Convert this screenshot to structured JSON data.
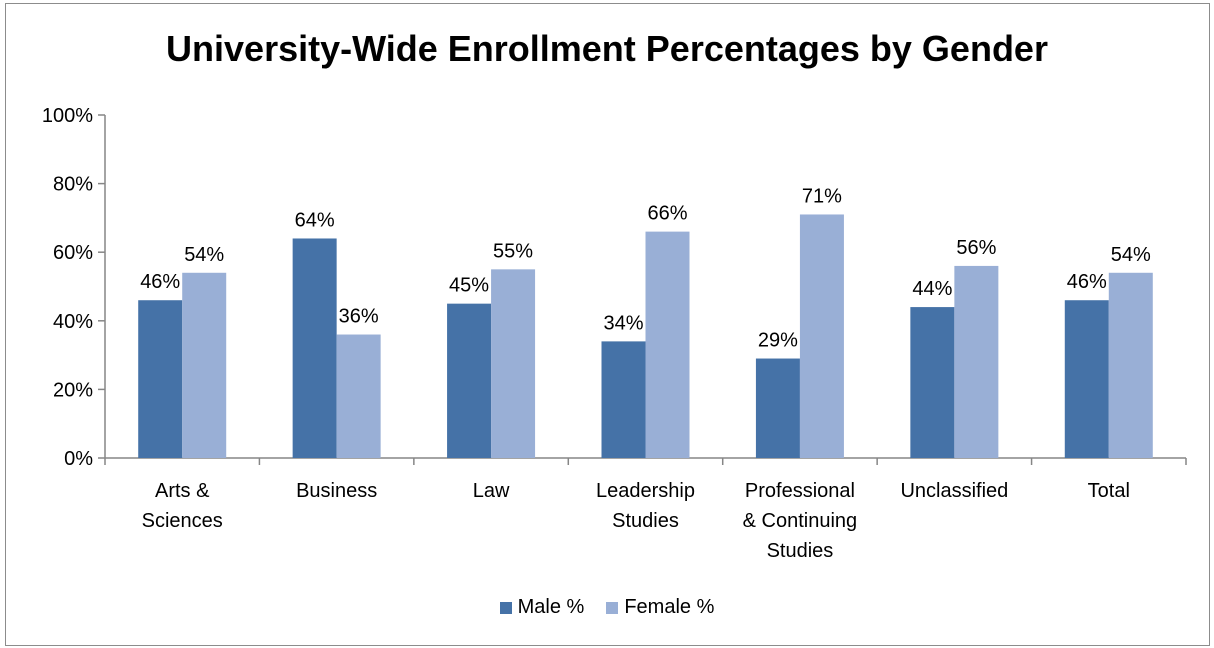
{
  "chart_data": {
    "type": "bar",
    "title": "University-Wide Enrollment Percentages by Gender",
    "xlabel": "",
    "ylabel": "",
    "ylim": [
      0,
      100
    ],
    "y_ticks": [
      "0%",
      "20%",
      "40%",
      "60%",
      "80%",
      "100%"
    ],
    "categories": [
      [
        "Arts &",
        "Sciences"
      ],
      [
        "Business"
      ],
      [
        "Law"
      ],
      [
        "Leadership",
        "Studies"
      ],
      [
        "Professional",
        "& Continuing",
        "Studies"
      ],
      [
        "Unclassified"
      ],
      [
        "Total"
      ]
    ],
    "series": [
      {
        "name": "Male %",
        "color": "#4572a7",
        "values": [
          46,
          64,
          45,
          34,
          29,
          44,
          46
        ],
        "labels": [
          "46%",
          "64%",
          "45%",
          "34%",
          "29%",
          "44%",
          "46%"
        ]
      },
      {
        "name": "Female %",
        "color": "#99afd6",
        "values": [
          54,
          36,
          55,
          66,
          71,
          56,
          54
        ],
        "labels": [
          "54%",
          "36%",
          "55%",
          "66%",
          "71%",
          "56%",
          "54%"
        ]
      }
    ],
    "grid": false,
    "legend_position": "bottom"
  }
}
